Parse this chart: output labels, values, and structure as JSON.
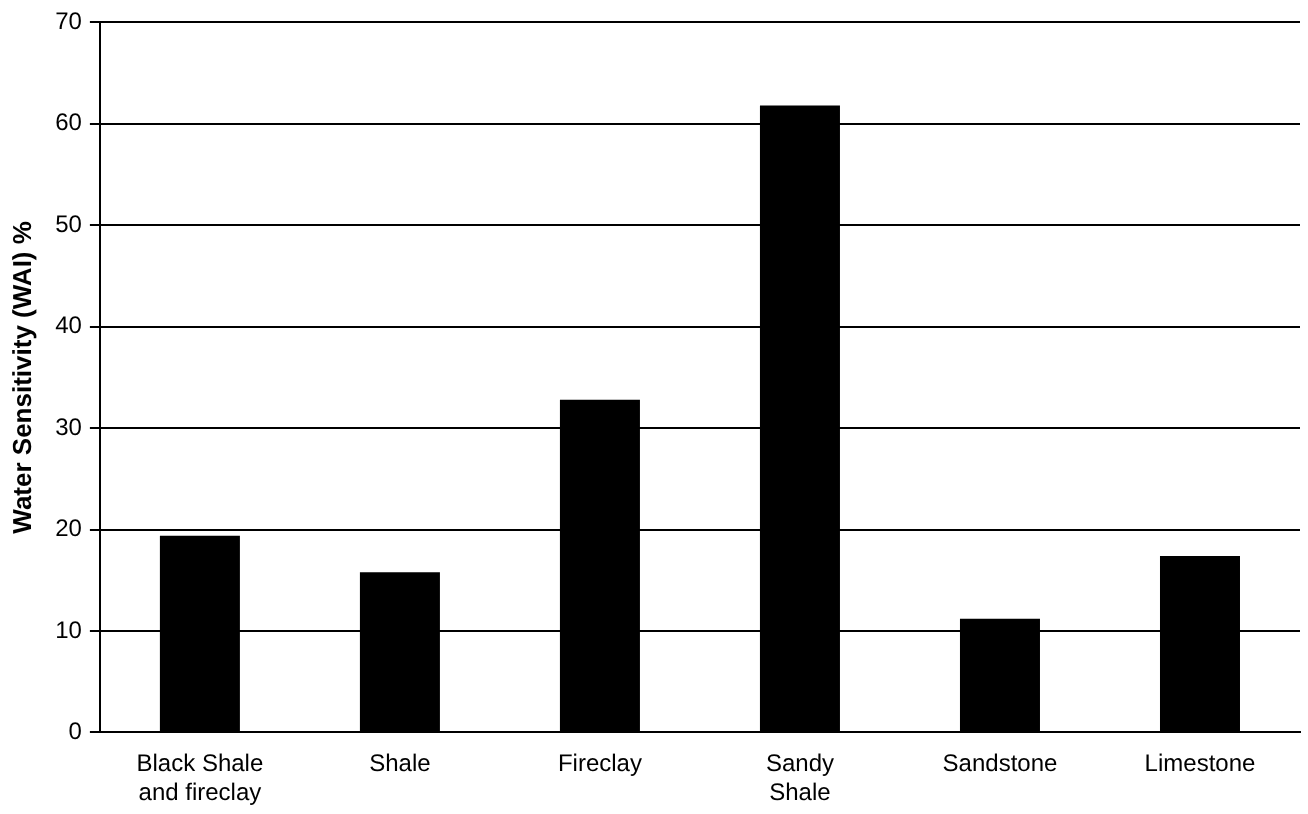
{
  "chart_data": {
    "type": "bar",
    "ylabel": "Water Sensitivity (WAI) %",
    "categories": [
      "Black Shale and fireclay",
      "Shale",
      "Fireclay",
      "Sandy Shale",
      "Sandstone",
      "Limestone"
    ],
    "values": [
      19.4,
      15.8,
      32.8,
      61.8,
      11.2,
      17.4
    ],
    "color": "#000000",
    "ylim": [
      0,
      70
    ],
    "yticks": [
      0,
      10,
      20,
      30,
      40,
      50,
      60,
      70
    ],
    "grid": "y",
    "legend": false
  }
}
